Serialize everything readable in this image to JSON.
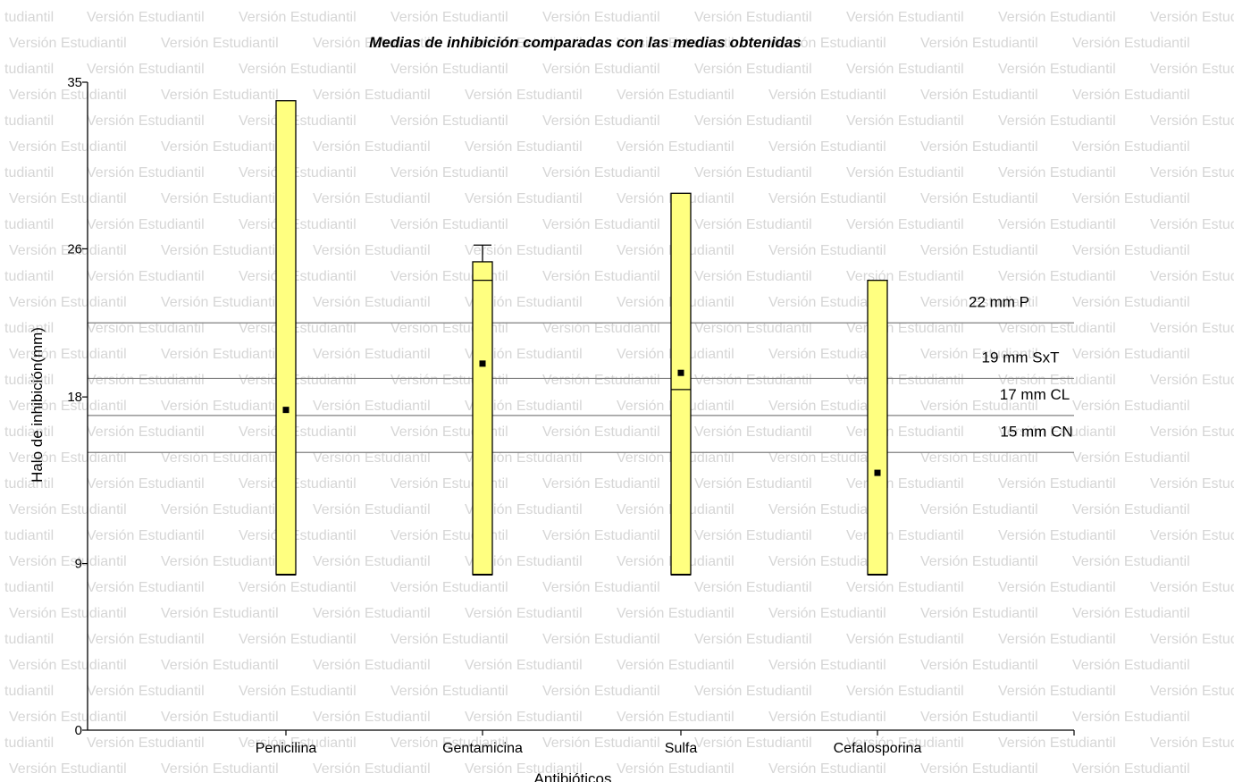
{
  "watermark": {
    "text": "Versión Estudiantil",
    "alt_text": "tudiantil",
    "color": "#d6d6d6"
  },
  "chart_data": {
    "type": "box",
    "title": "Medias de inhibición comparadas con las medias obtenidas",
    "xlabel": "Antibióticos",
    "ylabel": "Halo de inhibición(mm)",
    "ylim": [
      0,
      35
    ],
    "yticks": [
      "0",
      "9",
      "18",
      "26",
      "35"
    ],
    "ytick_values": [
      0,
      9,
      18,
      26,
      35
    ],
    "categories": [
      "Penicilina",
      "Gentamicina",
      "Sulfa",
      "Cefalosporina"
    ],
    "box_color": "#ffff80",
    "boxes": [
      {
        "category": "Penicilina",
        "min": 8.4,
        "max": 34.0,
        "mean": 17.3,
        "median": null
      },
      {
        "category": "Gentamicina",
        "min": 8.4,
        "max": 25.3,
        "mean": 19.8,
        "median": 24.3,
        "whisker_top": 26.2
      },
      {
        "category": "Sulfa",
        "min": 8.4,
        "max": 29.0,
        "mean": 19.3,
        "median": 18.4
      },
      {
        "category": "Cefalosporina",
        "min": 8.4,
        "max": 24.3,
        "mean": 13.9,
        "median": null
      }
    ],
    "reference_lines": [
      {
        "value": 22,
        "label": "22 mm P"
      },
      {
        "value": 19,
        "label": "19 mm SxT"
      },
      {
        "value": 17,
        "label": "17 mm CL"
      },
      {
        "value": 15,
        "label": "15 mm CN"
      }
    ]
  }
}
